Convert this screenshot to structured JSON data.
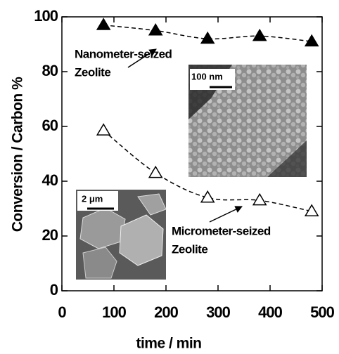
{
  "chart_data": {
    "type": "scatter",
    "x_label": "time / min",
    "y_label": "Conversion / Carbon %",
    "xlim": [
      0,
      500
    ],
    "ylim": [
      0,
      100
    ],
    "xticks": [
      0,
      100,
      200,
      300,
      400,
      500
    ],
    "yticks": [
      0,
      20,
      40,
      60,
      80,
      100
    ],
    "series": [
      {
        "marker": "filled-triangle",
        "color": "#000000",
        "x": [
          80,
          180,
          280,
          380,
          480
        ],
        "values": [
          97,
          95,
          92,
          93,
          91
        ]
      },
      {
        "marker": "open-triangle",
        "color": "#000000",
        "x": [
          80,
          180,
          280,
          380,
          480
        ],
        "values": [
          58.5,
          43,
          34,
          33,
          29
        ]
      }
    ],
    "annotations": [
      "Nanometer-seized",
      "Zeolite",
      "Micrometer-seized",
      "Zeolite"
    ],
    "insets": [
      "100 nm",
      "2 μm"
    ]
  }
}
